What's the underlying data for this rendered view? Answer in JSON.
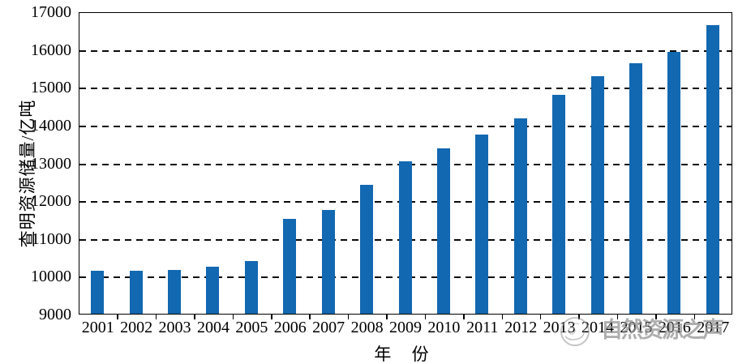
{
  "chart_data": {
    "type": "bar",
    "title": "",
    "categories": [
      "2001",
      "2002",
      "2003",
      "2004",
      "2005",
      "2006",
      "2007",
      "2008",
      "2009",
      "2010",
      "2011",
      "2012",
      "2013",
      "2014",
      "2015",
      "2016",
      "2017"
    ],
    "values": [
      10190,
      10190,
      10210,
      10290,
      10430,
      11560,
      11780,
      12460,
      13080,
      13410,
      13790,
      14210,
      14840,
      15320,
      15660,
      15980,
      16670
    ],
    "xlabel": "年 份",
    "ylabel": "查明资源储量/亿吨",
    "ylim": [
      9000,
      17000
    ],
    "ytick_step": 1000,
    "yticks": [
      9000,
      10000,
      11000,
      12000,
      13000,
      14000,
      15000,
      16000,
      17000
    ],
    "grid": "horizontal-dashed",
    "legend": "none",
    "bar_color": "#1268B1",
    "axis_color": "#000000"
  },
  "watermark": {
    "text": "自然资源之声",
    "logo": "globe-voice-logo",
    "color": "#8f8f8f"
  }
}
